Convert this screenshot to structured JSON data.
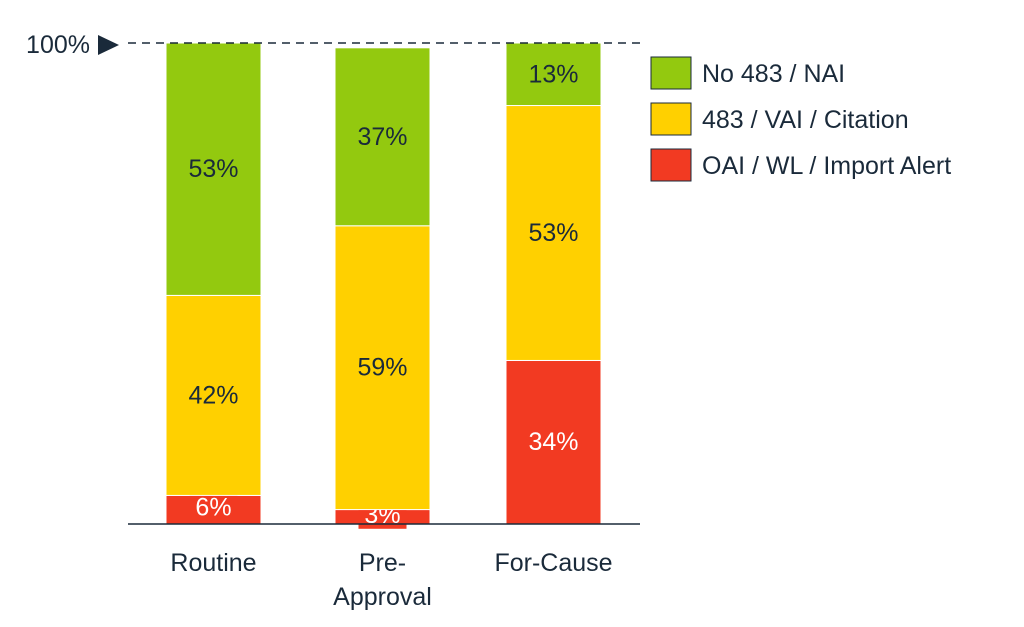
{
  "chart_data": {
    "type": "bar",
    "stacked": true,
    "categories": [
      [
        "Routine"
      ],
      [
        "Pre-",
        "Approval"
      ],
      [
        "For-Cause"
      ]
    ],
    "series": [
      {
        "name": "OAI / WL / Import Alert",
        "color": "#f23a22",
        "label_color": "#ffffff",
        "values": [
          6,
          3,
          34
        ],
        "labels": [
          "6%",
          "3%",
          "34%"
        ]
      },
      {
        "name": "483 / VAI / Citation",
        "color": "#ffd000",
        "label_color": "#1a2a3a",
        "values": [
          42,
          59,
          53
        ],
        "labels": [
          "42%",
          "59%",
          "53%"
        ]
      },
      {
        "name": "No 483 / NAI",
        "color": "#93c90f",
        "label_color": "#1a2a3a",
        "values": [
          53,
          37,
          13
        ],
        "labels": [
          "53%",
          "37%",
          "13%"
        ]
      }
    ],
    "legend_order": [
      "No 483 / NAI",
      "483 / VAI / Citation",
      "OAI / WL / Import Alert"
    ],
    "reference_line": {
      "value": 100,
      "label": "100%",
      "style": "dashed"
    },
    "ylim": [
      0,
      100
    ],
    "legend_position": "top-right"
  }
}
